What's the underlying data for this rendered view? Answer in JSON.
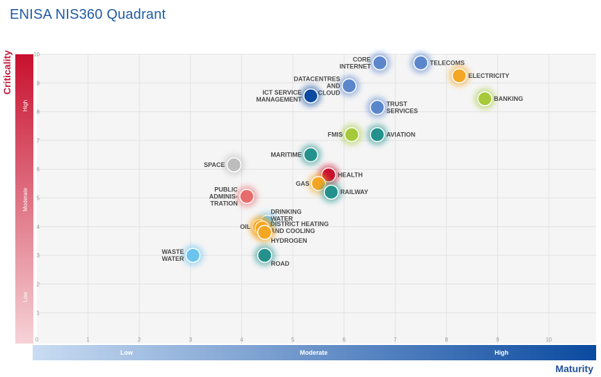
{
  "title": "ENISA NIS360 Quadrant",
  "chart_data": {
    "type": "scatter",
    "title": "ENISA NIS360 Quadrant",
    "xlabel": "Maturity",
    "ylabel": "Criticality",
    "xlim": [
      0,
      11
    ],
    "ylim": [
      0,
      10
    ],
    "xticks": [
      "0",
      "1",
      "2",
      "3",
      "4",
      "5",
      "6",
      "7",
      "8",
      "9",
      "10"
    ],
    "yticks": [
      "0",
      "1",
      "2",
      "3",
      "4",
      "5",
      "6",
      "7",
      "8",
      "9",
      "10"
    ],
    "grid": true,
    "y_bands": [
      "Low",
      "Moderate",
      "High"
    ],
    "x_bands": [
      "Low",
      "Moderate",
      "High"
    ],
    "points": [
      {
        "label": "CORE INTERNET",
        "x": 6.7,
        "y": 9.7,
        "color": "#5b86cc"
      },
      {
        "label": "TELECOMS",
        "x": 7.5,
        "y": 9.7,
        "color": "#5b86cc"
      },
      {
        "label": "ELECTRICITY",
        "x": 8.25,
        "y": 9.25,
        "color": "#f5a623"
      },
      {
        "label": "DATACENTRES AND CLOUD",
        "x": 6.1,
        "y": 8.9,
        "color": "#5b86cc"
      },
      {
        "label": "ICT SERVICE MANAGEMENT",
        "x": 5.35,
        "y": 8.55,
        "color": "#0b4aa0"
      },
      {
        "label": "BANKING",
        "x": 8.75,
        "y": 8.45,
        "color": "#a5c93a"
      },
      {
        "label": "TRUST SERVICES",
        "x": 6.65,
        "y": 8.15,
        "color": "#5b86cc"
      },
      {
        "label": "FMIS",
        "x": 6.15,
        "y": 7.2,
        "color": "#a5c93a"
      },
      {
        "label": "AVIATION",
        "x": 6.65,
        "y": 7.2,
        "color": "#24918c"
      },
      {
        "label": "MARITIME",
        "x": 5.35,
        "y": 6.5,
        "color": "#24918c"
      },
      {
        "label": "SPACE",
        "x": 3.85,
        "y": 6.15,
        "color": "#bdbdbd"
      },
      {
        "label": "HEALTH",
        "x": 5.7,
        "y": 5.8,
        "color": "#c8102e"
      },
      {
        "label": "GAS",
        "x": 5.5,
        "y": 5.5,
        "color": "#f5a623"
      },
      {
        "label": "RAILWAY",
        "x": 5.75,
        "y": 5.2,
        "color": "#24918c"
      },
      {
        "label": "PUBLIC ADMINIS-TRATION",
        "x": 4.1,
        "y": 5.05,
        "color": "#e86c6c"
      },
      {
        "label": "DRINKING WATER",
        "x": 4.5,
        "y": 4.15,
        "color": "#6cc3ee"
      },
      {
        "label": "OIL",
        "x": 4.35,
        "y": 4.0,
        "color": "#f5a623"
      },
      {
        "label": "DISTRICT HEATING AND COOLING",
        "x": 4.4,
        "y": 3.95,
        "color": "#f5a623"
      },
      {
        "label": "HYDROGEN",
        "x": 4.45,
        "y": 3.8,
        "color": "#f5a623"
      },
      {
        "label": "WASTE WATER",
        "x": 3.05,
        "y": 3.0,
        "color": "#6cc3ee"
      },
      {
        "label": "ROAD",
        "x": 4.45,
        "y": 3.0,
        "color": "#24918c"
      }
    ]
  }
}
